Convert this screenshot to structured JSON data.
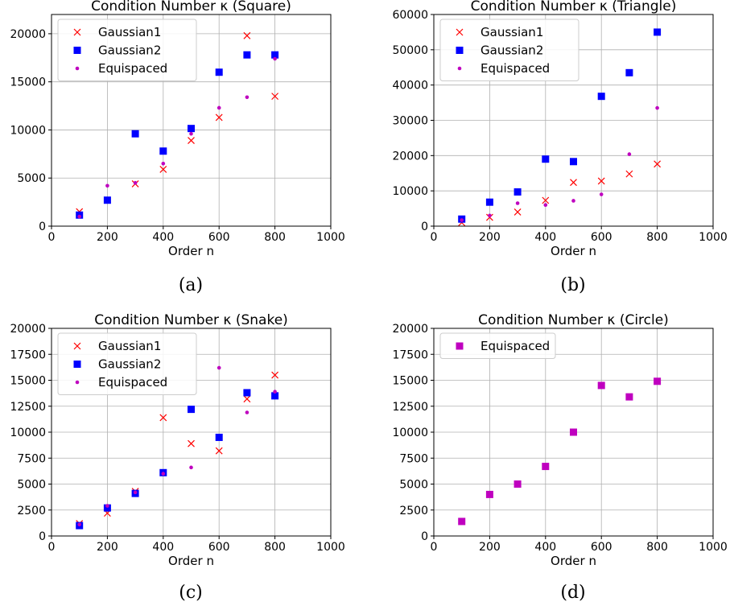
{
  "figure": {
    "captions": [
      "(a)",
      "(b)",
      "(c)",
      "(d)"
    ]
  },
  "chart_data": [
    {
      "type": "scatter",
      "title": "Condition Number κ (Square)",
      "xlabel": "Order n",
      "ylabel": "",
      "xlim": [
        0,
        1000
      ],
      "ylim": [
        0,
        22000
      ],
      "xticks": [
        0,
        200,
        400,
        600,
        800,
        1000
      ],
      "yticks": [
        0,
        5000,
        10000,
        15000,
        20000
      ],
      "grid": true,
      "legend_position": "top-left",
      "series": [
        {
          "name": "Gaussian1",
          "marker": "x",
          "color": "#ff0000",
          "x": [
            100,
            200,
            300,
            400,
            500,
            600,
            700,
            800
          ],
          "y": [
            1500,
            2700,
            4400,
            5900,
            8900,
            11300,
            19800,
            13500
          ]
        },
        {
          "name": "Gaussian2",
          "marker": "square",
          "color": "#0000ff",
          "x": [
            100,
            200,
            300,
            400,
            500,
            600,
            700,
            800
          ],
          "y": [
            1150,
            2700,
            9600,
            7800,
            10150,
            16000,
            17800,
            17800
          ]
        },
        {
          "name": "Equispaced",
          "marker": "dot",
          "color": "#bf00bf",
          "x": [
            100,
            200,
            300,
            400,
            500,
            600,
            700,
            800
          ],
          "y": [
            1000,
            4200,
            4500,
            6500,
            9600,
            12300,
            13400,
            17400
          ]
        }
      ]
    },
    {
      "type": "scatter",
      "title": "Condition Number κ (Triangle)",
      "xlabel": "Order n",
      "ylabel": "",
      "xlim": [
        0,
        1000
      ],
      "ylim": [
        0,
        60000
      ],
      "xticks": [
        0,
        200,
        400,
        600,
        800,
        1000
      ],
      "yticks": [
        0,
        10000,
        20000,
        30000,
        40000,
        50000,
        60000
      ],
      "grid": true,
      "legend_position": "top-left",
      "series": [
        {
          "name": "Gaussian1",
          "marker": "x",
          "color": "#ff0000",
          "x": [
            100,
            200,
            300,
            400,
            500,
            600,
            700,
            800
          ],
          "y": [
            1000,
            2500,
            4000,
            7300,
            12400,
            12800,
            14800,
            17600
          ]
        },
        {
          "name": "Gaussian2",
          "marker": "square",
          "color": "#0000ff",
          "x": [
            100,
            200,
            300,
            400,
            500,
            600,
            700,
            800
          ],
          "y": [
            2000,
            6800,
            9700,
            19000,
            18300,
            36800,
            43500,
            55000
          ]
        },
        {
          "name": "Equispaced",
          "marker": "dot",
          "color": "#bf00bf",
          "x": [
            100,
            200,
            300,
            400,
            500,
            600,
            700,
            800
          ],
          "y": [
            1700,
            3000,
            6500,
            6000,
            7200,
            9000,
            20400,
            33500
          ]
        }
      ]
    },
    {
      "type": "scatter",
      "title": "Condition Number κ (Snake)",
      "xlabel": "Order n",
      "ylabel": "",
      "xlim": [
        0,
        1000
      ],
      "ylim": [
        0,
        20000
      ],
      "xticks": [
        0,
        200,
        400,
        600,
        800,
        1000
      ],
      "yticks": [
        0,
        2500,
        5000,
        7500,
        10000,
        12500,
        15000,
        17500,
        20000
      ],
      "grid": true,
      "legend_position": "top-left",
      "series": [
        {
          "name": "Gaussian1",
          "marker": "x",
          "color": "#ff0000",
          "x": [
            100,
            200,
            300,
            400,
            500,
            600,
            700,
            800
          ],
          "y": [
            1200,
            2200,
            4300,
            11400,
            8900,
            8200,
            13200,
            15500
          ]
        },
        {
          "name": "Gaussian2",
          "marker": "square",
          "color": "#0000ff",
          "x": [
            100,
            200,
            300,
            400,
            500,
            600,
            700,
            800
          ],
          "y": [
            1000,
            2700,
            4100,
            6100,
            12200,
            9500,
            13800,
            13500
          ]
        },
        {
          "name": "Equispaced",
          "marker": "dot",
          "color": "#bf00bf",
          "x": [
            100,
            200,
            300,
            400,
            500,
            600,
            700,
            800
          ],
          "y": [
            1100,
            2900,
            4200,
            6000,
            6600,
            16200,
            11900,
            13900
          ]
        }
      ]
    },
    {
      "type": "scatter",
      "title": "Condition Number κ (Circle)",
      "xlabel": "Order n",
      "ylabel": "",
      "xlim": [
        0,
        1000
      ],
      "ylim": [
        0,
        20000
      ],
      "xticks": [
        0,
        200,
        400,
        600,
        800,
        1000
      ],
      "yticks": [
        0,
        2500,
        5000,
        7500,
        10000,
        12500,
        15000,
        17500,
        20000
      ],
      "grid": true,
      "legend_position": "top-left",
      "series": [
        {
          "name": "Equispaced",
          "marker": "square",
          "color": "#bf00bf",
          "x": [
            100,
            200,
            300,
            400,
            500,
            600,
            700,
            800
          ],
          "y": [
            1400,
            4000,
            5000,
            6700,
            10000,
            14500,
            13400,
            14900
          ]
        }
      ]
    }
  ]
}
